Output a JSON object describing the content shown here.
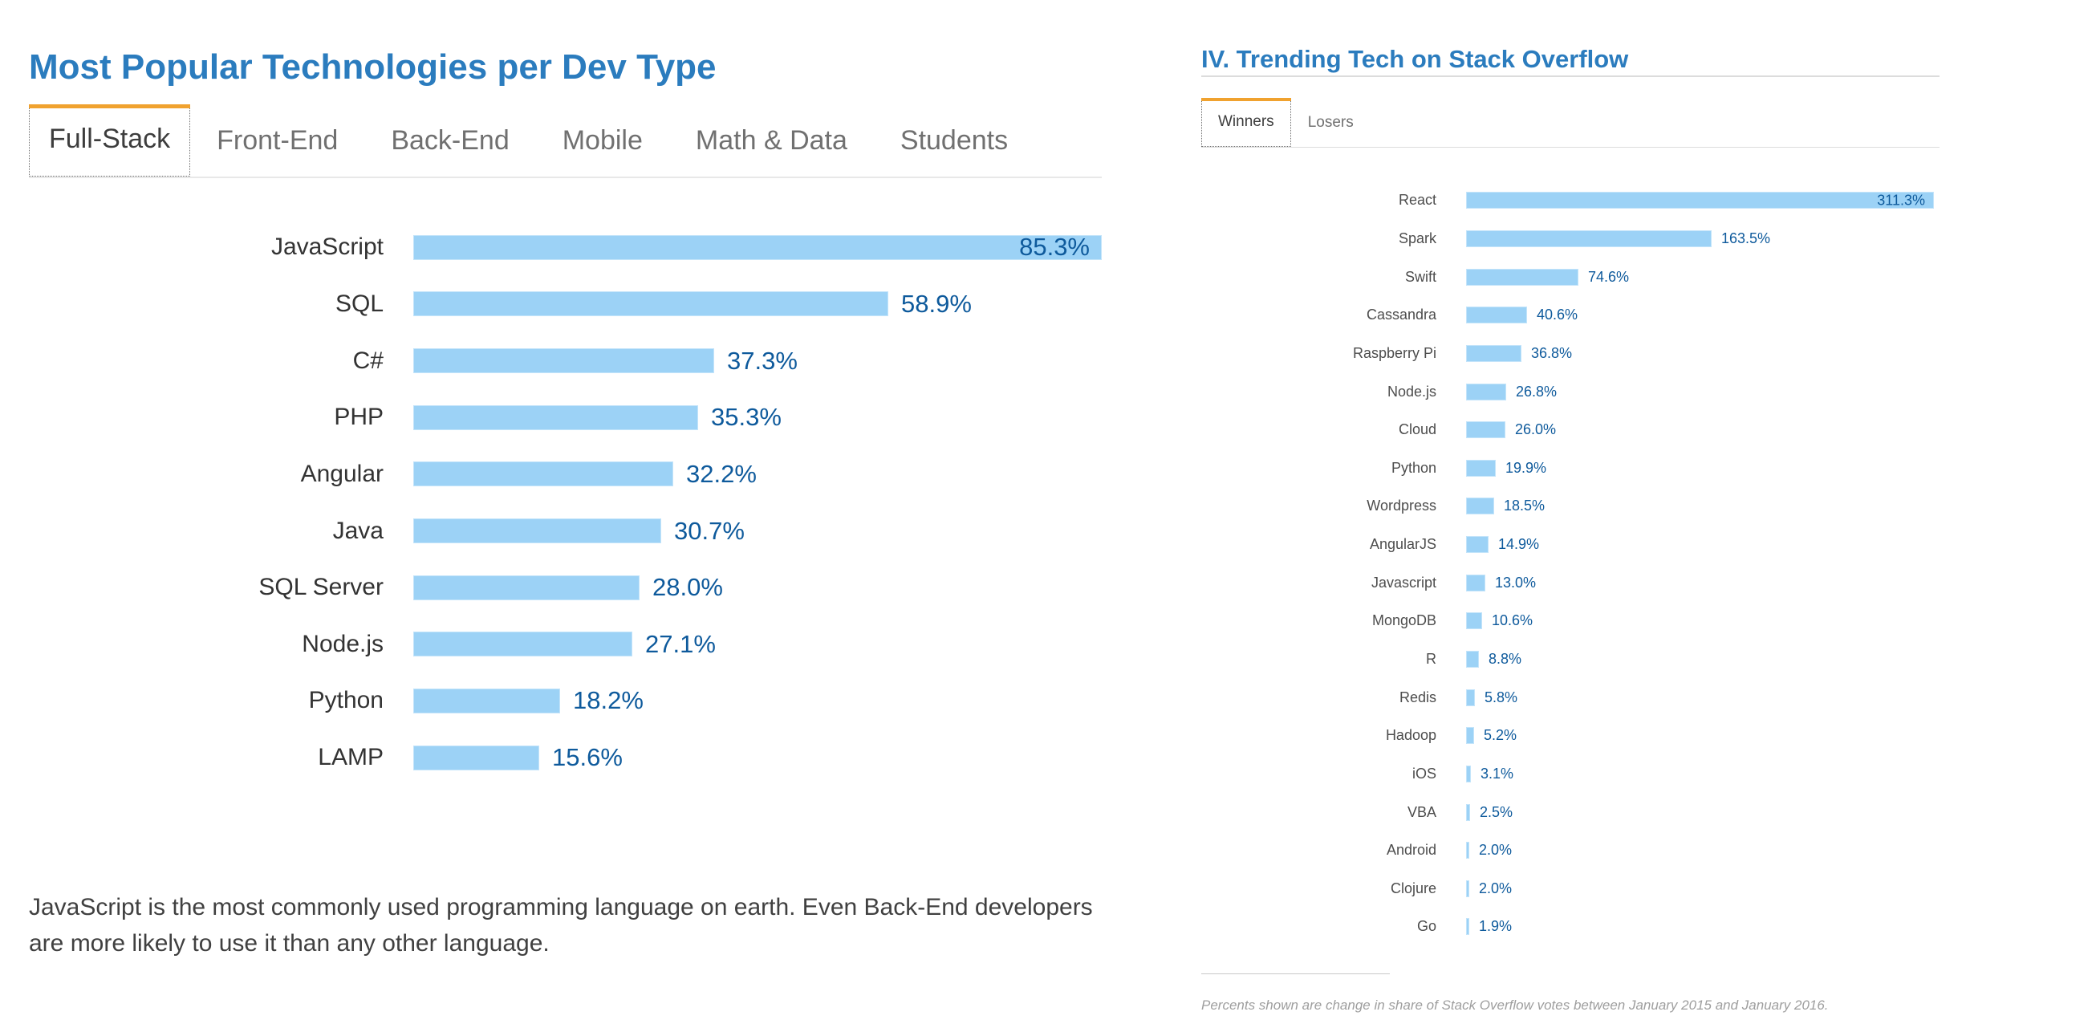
{
  "colors": {
    "heading_blue": "#2b7cbe",
    "accent_orange": "#f0a22f",
    "bar_blue": "#9cd2f6",
    "value_blue": "#0e5a9c"
  },
  "left_panel": {
    "title": "Most Popular Technologies per Dev Type",
    "tabs": [
      {
        "label": "Full-Stack",
        "active": true
      },
      {
        "label": "Front-End",
        "active": false
      },
      {
        "label": "Back-End",
        "active": false
      },
      {
        "label": "Mobile",
        "active": false
      },
      {
        "label": "Math & Data",
        "active": false
      },
      {
        "label": "Students",
        "active": false
      }
    ],
    "caption": "JavaScript is the most commonly used programming language on earth. Even Back-End developers are more likely to use it than any other language."
  },
  "right_panel": {
    "title": "IV. Trending Tech on Stack Overflow",
    "tabs": [
      {
        "label": "Winners",
        "active": true
      },
      {
        "label": "Losers",
        "active": false
      }
    ],
    "footnote": "Percents shown are change in share of Stack Overflow votes between January 2015 and January 2016."
  },
  "chart_data": [
    {
      "type": "bar",
      "orientation": "horizontal",
      "title": "Most Popular Technologies per Dev Type (Full-Stack)",
      "categories": [
        "JavaScript",
        "SQL",
        "C#",
        "PHP",
        "Angular",
        "Java",
        "SQL Server",
        "Node.js",
        "Python",
        "LAMP"
      ],
      "values": [
        85.3,
        58.9,
        37.3,
        35.3,
        32.2,
        30.7,
        28.0,
        27.1,
        18.2,
        15.6
      ],
      "value_suffix": "%",
      "xlim": [
        0,
        85.3
      ],
      "grid": false,
      "legend": false,
      "first_label_inside": true,
      "bar_color": "#9cd2f6"
    },
    {
      "type": "bar",
      "orientation": "horizontal",
      "title": "IV. Trending Tech on Stack Overflow (Winners)",
      "categories": [
        "React",
        "Spark",
        "Swift",
        "Cassandra",
        "Raspberry Pi",
        "Node.js",
        "Cloud",
        "Python",
        "Wordpress",
        "AngularJS",
        "Javascript",
        "MongoDB",
        "R",
        "Redis",
        "Hadoop",
        "iOS",
        "VBA",
        "Android",
        "Clojure",
        "Go"
      ],
      "values": [
        311.3,
        163.5,
        74.6,
        40.6,
        36.8,
        26.8,
        26.0,
        19.9,
        18.5,
        14.9,
        13.0,
        10.6,
        8.8,
        5.8,
        5.2,
        3.1,
        2.5,
        2.0,
        2.0,
        1.9
      ],
      "value_suffix": "%",
      "xlim": [
        0,
        311.3
      ],
      "grid": false,
      "legend": false,
      "first_label_inside": true,
      "bar_color": "#9cd2f6"
    }
  ]
}
